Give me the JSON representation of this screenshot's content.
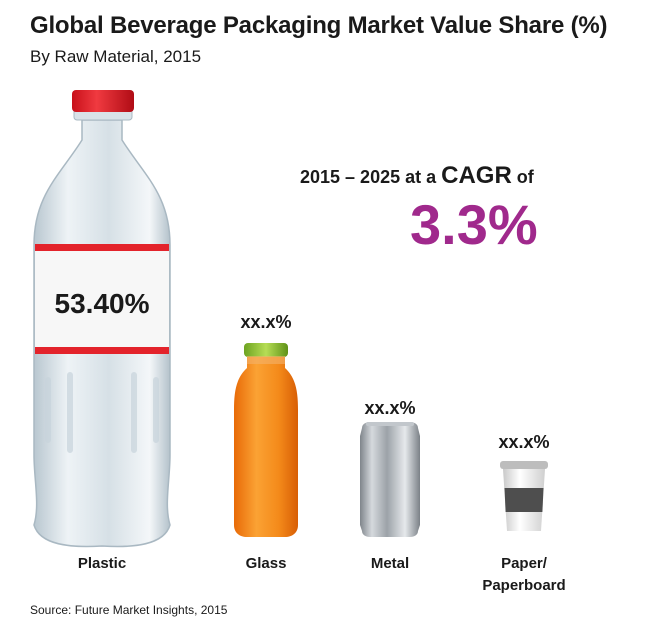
{
  "header": {
    "title": "Global Beverage Packaging Market Value Share (%)",
    "subtitle": "By Raw Material, 2015"
  },
  "cagr": {
    "text_prefix": "2015 – 2025 at a ",
    "text_keyword": "CAGR",
    "text_suffix": " of",
    "value": "3.3%",
    "color": "#a0298c"
  },
  "chart_data": {
    "type": "bar",
    "title": "Global Beverage Packaging Market Value Share (%)",
    "subtitle": "By Raw Material, 2015",
    "categories": [
      "Plastic",
      "Glass",
      "Metal",
      "Paper/\nPaperboard"
    ],
    "value_labels": [
      "53.40%",
      "xx.x%",
      "xx.x%",
      "xx.x%"
    ],
    "values": [
      53.4,
      null,
      null,
      null
    ],
    "icons": [
      "plastic-bottle-icon",
      "glass-bottle-icon",
      "metal-can-icon",
      "paper-cup-icon"
    ]
  },
  "footer": {
    "source": "Source: Future Market Insights, 2015"
  }
}
